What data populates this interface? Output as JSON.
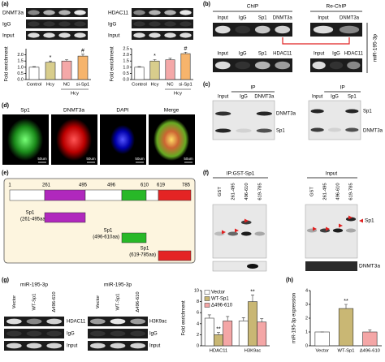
{
  "panels": {
    "a": {
      "label": "(a)",
      "gels": [
        {
          "rows": [
            "DNMT3a",
            "IgG",
            "Input"
          ]
        },
        {
          "rows": [
            "HDAC11",
            "IgG",
            "Input"
          ]
        }
      ]
    },
    "b": {
      "label": "(b)",
      "headers": [
        "ChIP",
        "Re-ChIP"
      ],
      "row1": {
        "chip_lanes": [
          "Input",
          "IgG",
          "Sp1",
          "DNMT3a"
        ],
        "rechip_lanes": [
          "Input",
          "DNMT3a"
        ]
      },
      "row2": {
        "chip_lanes": [
          "Input",
          "IgG",
          "Sp1",
          "HDAC11"
        ],
        "rechip_lanes": [
          "Input",
          "IgG",
          "HDAC11"
        ]
      },
      "side_label": "miR-195-3p"
    },
    "c": {
      "label": "(c)",
      "blots": [
        {
          "header": "IP",
          "lanes": [
            "Input",
            "IgG",
            "DNMT3a"
          ],
          "rows": [
            "DNMT3a",
            "Sp1"
          ]
        },
        {
          "header": "IP",
          "lanes": [
            "Input",
            "IgG",
            "Sp1"
          ],
          "rows": [
            "Sp1",
            "DNMT3a"
          ]
        }
      ]
    },
    "d": {
      "label": "(d)",
      "images": [
        "Sp1",
        "DNMT3a",
        "DAPI",
        "Merge"
      ],
      "scale": "50um"
    },
    "e": {
      "label": "(e)",
      "positions": [
        1,
        261,
        495,
        496,
        610,
        619,
        785
      ],
      "fragments": [
        {
          "name": "Sp1",
          "range": "(261-495aa)"
        },
        {
          "name": "Sp1",
          "range": "(496-610aa)"
        },
        {
          "name": "Sp1",
          "range": "(619-785aa)"
        }
      ]
    },
    "f": {
      "label": "(f)",
      "headers": [
        "IP:GST-Sp1",
        "Input"
      ],
      "lanes": [
        "GST",
        "261-495",
        "496-610",
        "619-785"
      ],
      "rows": [
        "Sp1",
        "DNMT3a"
      ]
    },
    "g": {
      "label": "(g)",
      "gels": [
        {
          "header": "miR-195-3p",
          "lanes": [
            "Vector",
            "WT-Sp1",
            "Δ496-610"
          ],
          "rows": [
            "HDAC11",
            "IgG",
            "Input"
          ]
        },
        {
          "header": "miR-195-3p",
          "lanes": [
            "Vector",
            "WT-Sp1",
            "Δ496-610"
          ],
          "rows": [
            "H3K9ac",
            "IgG",
            "Input"
          ]
        }
      ]
    },
    "h": {
      "label": "(h)"
    }
  },
  "chart_data": [
    {
      "type": "bar",
      "ylabel": "Fold enrichment",
      "categories": [
        "Control",
        "Hcy",
        "NC",
        "si-Sp1"
      ],
      "group_label": "Hcy",
      "values": [
        1.0,
        1.4,
        1.5,
        1.9
      ],
      "errors": [
        0.05,
        0.1,
        0.12,
        0.15
      ],
      "colors": [
        "#ffffff",
        "#d8cd8c",
        "#f4a8a8",
        "#f6b46c"
      ],
      "annotations": [
        null,
        "*",
        null,
        "#"
      ],
      "ylim": [
        0,
        2.5
      ],
      "yticks": [
        {
          "value": 0,
          "label": "0.0"
        },
        {
          "value": 0.5,
          "label": "0.5"
        },
        {
          "value": 1,
          "label": "1.0"
        },
        {
          "value": 1.5,
          "label": "1.5"
        },
        {
          "value": 2,
          "label": "2.0"
        }
      ]
    },
    {
      "type": "bar",
      "ylabel": "Fold enrichment",
      "categories": [
        "Control",
        "Hcy",
        "NC",
        "si-Sp1"
      ],
      "group_label": "Hcy",
      "values": [
        1.0,
        1.5,
        1.6,
        2.1
      ],
      "errors": [
        0.05,
        0.12,
        0.12,
        0.12
      ],
      "colors": [
        "#ffffff",
        "#d8cd8c",
        "#f4a8a8",
        "#f6b46c"
      ],
      "annotations": [
        null,
        "*",
        null,
        "#"
      ],
      "ylim": [
        0,
        2.5
      ],
      "yticks": [
        {
          "value": 0,
          "label": "0.0"
        },
        {
          "value": 0.5,
          "label": "0.5"
        },
        {
          "value": 1,
          "label": "1.0"
        },
        {
          "value": 1.5,
          "label": "1.5"
        },
        {
          "value": 2,
          "label": "2.0"
        },
        {
          "value": 2.5,
          "label": "2.5"
        }
      ]
    },
    {
      "type": "bar",
      "ylabel": "Fold enrichment",
      "categories": [
        "HDAC11",
        "H3K9ac"
      ],
      "series": [
        {
          "name": "Vector",
          "color": "#ffffff",
          "values": [
            5,
            4.5
          ],
          "errors": [
            0.6,
            0.6
          ],
          "annotations": [
            null,
            null
          ]
        },
        {
          "name": "WT-Sp1",
          "color": "#c9b774",
          "values": [
            2,
            8
          ],
          "errors": [
            0.4,
            1.2
          ],
          "annotations": [
            "**",
            "**"
          ]
        },
        {
          "name": "Δ496-610",
          "color": "#f4a6a6",
          "values": [
            4.5,
            4.3
          ],
          "errors": [
            0.8,
            0.6
          ],
          "annotations": [
            null,
            null
          ]
        }
      ],
      "ylim": [
        0,
        10
      ],
      "yticks": [
        0,
        2,
        4,
        6,
        8,
        10
      ],
      "legend": "top-left"
    },
    {
      "type": "bar",
      "ylabel": "miR-195-3p expression",
      "categories": [
        "Vector",
        "WT-Sp1",
        "Δ496-610"
      ],
      "values": [
        1,
        2.7,
        1
      ],
      "errors": [
        0,
        0.3,
        0.15
      ],
      "colors": [
        "#ffffff",
        "#c9b774",
        "#f4a6a6"
      ],
      "annotations": [
        null,
        "**",
        null
      ],
      "ylim": [
        0,
        4
      ],
      "yticks": [
        0,
        1,
        2,
        3,
        4
      ]
    }
  ]
}
